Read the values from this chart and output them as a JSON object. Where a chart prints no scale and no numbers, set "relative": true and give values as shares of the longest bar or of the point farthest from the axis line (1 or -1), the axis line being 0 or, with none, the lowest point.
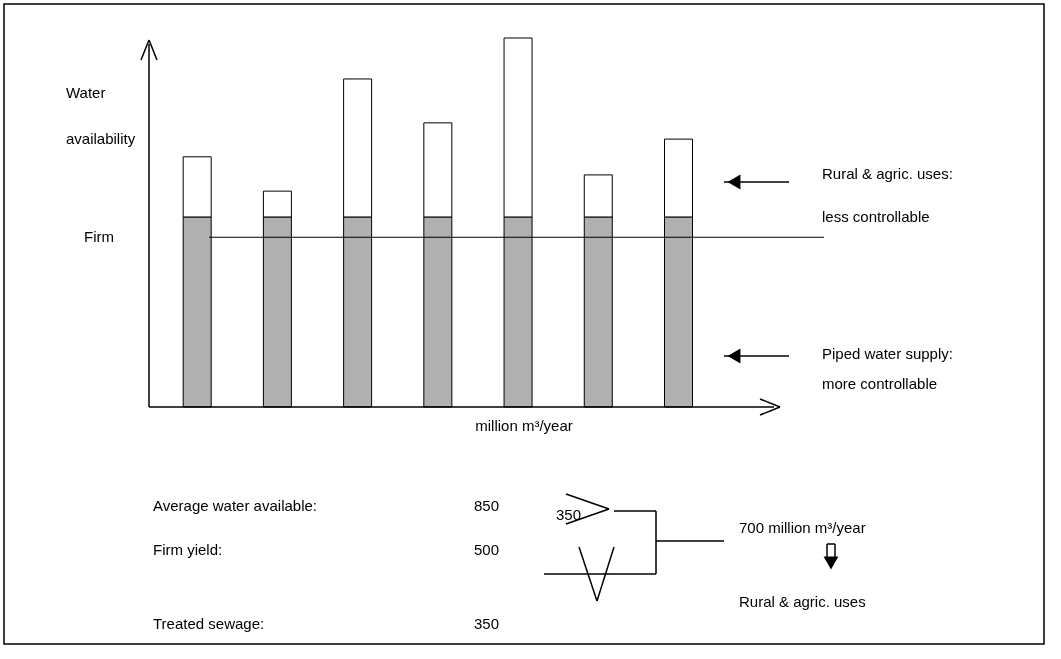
{
  "chart_data": {
    "type": "bar",
    "stacked": true,
    "relative": true,
    "categories": [
      null,
      null,
      null,
      null,
      null,
      null,
      null
    ],
    "ylabel": "Water availability",
    "xlabel": "million m³/year",
    "series": [
      {
        "color": "#b0b0b0",
        "values": [
          0.515,
          0.515,
          0.515,
          0.515,
          0.515,
          0.515,
          0.515
        ]
      },
      {
        "color": "#ffffff",
        "values": [
          0.163,
          0.07,
          0.374,
          0.255,
          0.485,
          0.114,
          0.211
        ]
      }
    ],
    "ref_lines": [
      {
        "axis": "y",
        "value": 0.46,
        "label": "Firm",
        "color": "#000000"
      }
    ],
    "annotations": [
      "Rural & agric. uses:",
      "less controllable",
      "Piped water supply:",
      "more controllable",
      "Average water available:",
      "850",
      "350",
      "700 million m³/year",
      "Firm yield:",
      "500",
      "Rural & agric. uses",
      "Treated sewage:",
      "350"
    ]
  }
}
